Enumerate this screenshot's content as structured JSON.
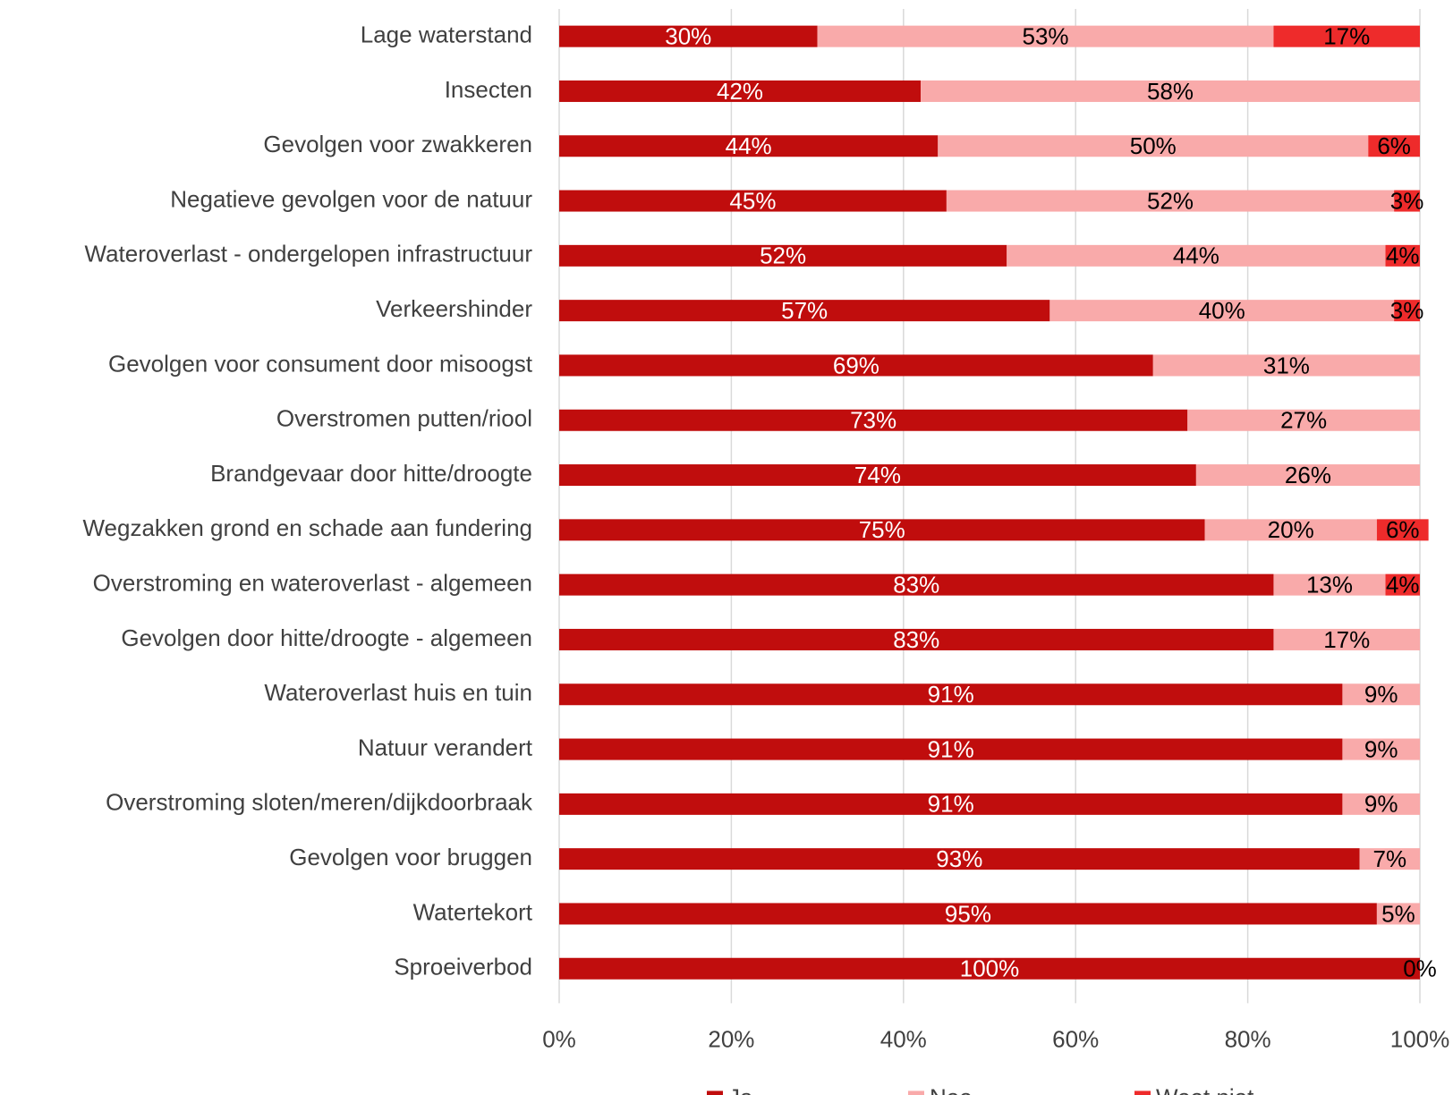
{
  "chart_data": {
    "type": "stacked-bar-horizontal",
    "categories": [
      "Lage waterstand",
      "Insecten",
      "Gevolgen voor zwakkeren",
      "Negatieve gevolgen voor de natuur",
      "Wateroverlast - ondergelopen infrastructuur",
      "Verkeershinder",
      "Gevolgen voor consument door misoogst",
      "Overstromen putten/riool",
      "Brandgevaar door hitte/droogte",
      "Wegzakken grond en schade aan fundering",
      "Overstroming en wateroverlast - algemeen",
      "Gevolgen door hitte/droogte - algemeen",
      "Wateroverlast huis en tuin",
      "Natuur verandert",
      "Overstroming sloten/meren/dijkdoorbraak",
      "Gevolgen voor bruggen",
      "Watertekort",
      "Sproeiverbod"
    ],
    "series": [
      {
        "name": "Ja",
        "color": "#c00d0d",
        "label_color": "#ffffff",
        "values": [
          30,
          42,
          44,
          45,
          52,
          57,
          69,
          73,
          74,
          75,
          83,
          83,
          91,
          91,
          91,
          93,
          95,
          100
        ],
        "value_labels": [
          "30%",
          "42%",
          "44%",
          "45%",
          "52%",
          "57%",
          "69%",
          "73%",
          "74%",
          "75%",
          "83%",
          "83%",
          "91%",
          "91%",
          "91%",
          "93%",
          "95%",
          "100%"
        ]
      },
      {
        "name": "Nee",
        "color": "#f9aaaa",
        "label_color": "#000000",
        "values": [
          53,
          58,
          50,
          52,
          44,
          40,
          31,
          27,
          26,
          20,
          13,
          17,
          9,
          9,
          9,
          7,
          5,
          0
        ],
        "value_labels": [
          "53%",
          "58%",
          "50%",
          "52%",
          "44%",
          "40%",
          "31%",
          "27%",
          "26%",
          "20%",
          "13%",
          "17%",
          "9%",
          "9%",
          "9%",
          "7%",
          "5%",
          "0%"
        ]
      },
      {
        "name": "Weet niet",
        "color": "#ee2b2b",
        "label_color": "#000000",
        "values": [
          17,
          null,
          6,
          3,
          4,
          3,
          null,
          null,
          null,
          6,
          4,
          null,
          null,
          null,
          null,
          null,
          null,
          null
        ],
        "value_labels": [
          "17%",
          null,
          "6%",
          "3%",
          "4%",
          "3%",
          null,
          null,
          null,
          "6%",
          "4%",
          null,
          null,
          null,
          null,
          null,
          null,
          null
        ]
      }
    ],
    "xlim": [
      0,
      100
    ],
    "xticks": [
      {
        "value": 0,
        "label": "0%"
      },
      {
        "value": 20,
        "label": "20%"
      },
      {
        "value": 40,
        "label": "40%"
      },
      {
        "value": 60,
        "label": "60%"
      },
      {
        "value": 80,
        "label": "80%"
      },
      {
        "value": 100,
        "label": "100%"
      }
    ],
    "grid": true,
    "legend": "bottom"
  }
}
